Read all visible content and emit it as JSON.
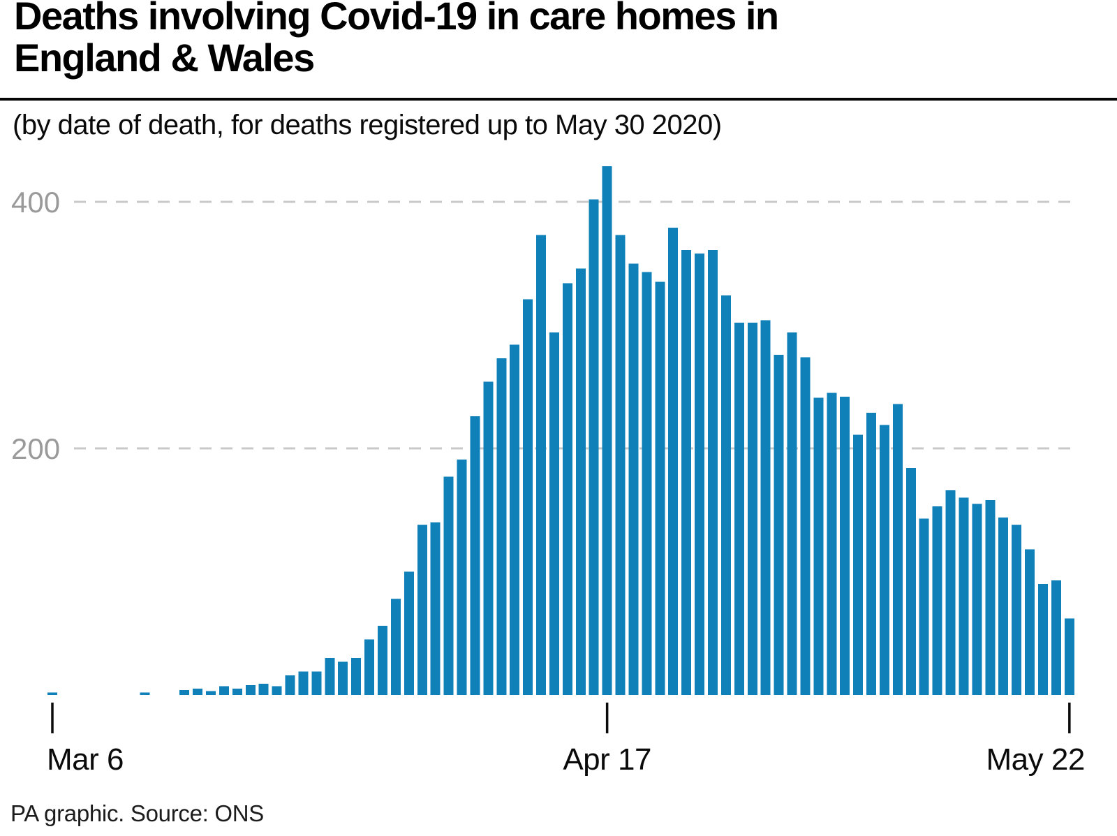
{
  "header": {
    "title": "Deaths involving Covid-19 in care homes in\nEngland & Wales",
    "subtitle": "(by date of death, for deaths registered up to May 30 2020)"
  },
  "footer": {
    "credit": "PA graphic. Source: ONS"
  },
  "colors": {
    "bar": "#0F80B8",
    "gridline": "#c9c9c9",
    "y_label": "#9a9a9a",
    "tick": "#0b0b0b",
    "x_label": "#0a0a0a"
  },
  "chart_data": {
    "type": "bar",
    "title": "Deaths involving Covid-19 in care homes in England & Wales",
    "subtitle": "(by date of death, for deaths registered up to May 30 2020)",
    "xlabel": "",
    "ylabel": "",
    "ylim": [
      0,
      440
    ],
    "yticks": [
      200,
      400
    ],
    "grid": "horizontal-dashed",
    "legend": "none",
    "x_ticks": [
      {
        "label": "Mar 6",
        "index": 0,
        "anchor": "start"
      },
      {
        "label": "Apr 17",
        "index": 42,
        "anchor": "middle"
      },
      {
        "label": "May 22",
        "index": 77,
        "anchor": "end"
      }
    ],
    "categories": [
      "Mar 6",
      "Mar 7",
      "Mar 8",
      "Mar 9",
      "Mar 10",
      "Mar 11",
      "Mar 12",
      "Mar 13",
      "Mar 14",
      "Mar 15",
      "Mar 16",
      "Mar 17",
      "Mar 18",
      "Mar 19",
      "Mar 20",
      "Mar 21",
      "Mar 22",
      "Mar 23",
      "Mar 24",
      "Mar 25",
      "Mar 26",
      "Mar 27",
      "Mar 28",
      "Mar 29",
      "Mar 30",
      "Mar 31",
      "Apr 1",
      "Apr 2",
      "Apr 3",
      "Apr 4",
      "Apr 5",
      "Apr 6",
      "Apr 7",
      "Apr 8",
      "Apr 9",
      "Apr 10",
      "Apr 11",
      "Apr 12",
      "Apr 13",
      "Apr 14",
      "Apr 15",
      "Apr 16",
      "Apr 17",
      "Apr 18",
      "Apr 19",
      "Apr 20",
      "Apr 21",
      "Apr 22",
      "Apr 23",
      "Apr 24",
      "Apr 25",
      "Apr 26",
      "Apr 27",
      "Apr 28",
      "Apr 29",
      "Apr 30",
      "May 1",
      "May 2",
      "May 3",
      "May 4",
      "May 5",
      "May 6",
      "May 7",
      "May 8",
      "May 9",
      "May 10",
      "May 11",
      "May 12",
      "May 13",
      "May 14",
      "May 15",
      "May 16",
      "May 17",
      "May 18",
      "May 19",
      "May 20",
      "May 21",
      "May 22"
    ],
    "values": [
      2,
      0,
      0,
      0,
      0,
      0,
      0,
      2,
      0,
      0,
      4,
      5,
      3,
      7,
      5,
      8,
      9,
      7,
      16,
      19,
      19,
      30,
      27,
      30,
      45,
      56,
      78,
      100,
      138,
      140,
      177,
      191,
      226,
      254,
      273,
      284,
      321,
      373,
      294,
      334,
      346,
      402,
      429,
      373,
      350,
      343,
      335,
      379,
      361,
      358,
      361,
      324,
      302,
      302,
      304,
      276,
      294,
      274,
      241,
      245,
      242,
      211,
      229,
      219,
      236,
      184,
      143,
      153,
      166,
      160,
      155,
      158,
      144,
      138,
      118,
      90,
      93,
      62
    ]
  }
}
